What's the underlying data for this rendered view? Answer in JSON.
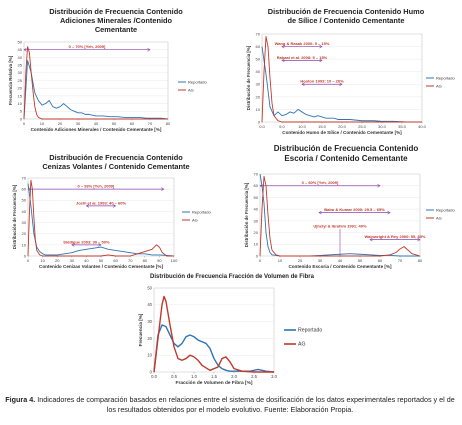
{
  "chart_data": [
    {
      "type": "line",
      "title_lines": [
        "Distribución de Frecuencia Contenido",
        "Adiciones Minerales /Contenido",
        "Cementante"
      ],
      "xlabel": "Contenido Adiciones Minerales / Contenido Cementante [%]",
      "ylabel": "Frecuencia Relativa [%]",
      "xlim": [
        0,
        80
      ],
      "ylim": [
        0,
        50
      ],
      "x_ticks": [
        "0",
        "10",
        "20",
        "30",
        "40",
        "50",
        "60",
        "70",
        "80"
      ],
      "y_ticks": [
        "0",
        "5",
        "10",
        "15",
        "20",
        "25",
        "30",
        "35",
        "40",
        "45",
        "50"
      ],
      "legend_position": "right",
      "series": [
        {
          "name": "Reportado",
          "color": "#2e75b6",
          "x": [
            0,
            2,
            4,
            6,
            8,
            10,
            12,
            14,
            16,
            18,
            20,
            22,
            24,
            26,
            28,
            30,
            32,
            34,
            36,
            38,
            40,
            44,
            48,
            52,
            56,
            60,
            64,
            68,
            72,
            76,
            80
          ],
          "y": [
            0,
            38,
            30,
            17,
            12,
            9,
            10,
            12,
            8,
            7,
            8,
            10,
            8,
            6,
            5,
            4,
            4,
            3,
            3,
            2.5,
            2,
            2,
            1.5,
            1.5,
            1,
            1,
            1,
            0.5,
            0.5,
            0.5,
            0
          ]
        },
        {
          "name": "AG",
          "color": "#c0392b",
          "x": [
            0,
            1,
            2,
            3,
            4,
            5,
            6,
            7,
            8,
            10,
            12,
            14,
            16,
            20,
            30,
            40,
            50,
            60,
            70,
            80
          ],
          "y": [
            0,
            30,
            47,
            43,
            30,
            18,
            8,
            3,
            1,
            0,
            0,
            0,
            0,
            0,
            0,
            0,
            0,
            0,
            0,
            0
          ]
        }
      ],
      "annotations": [
        {
          "text": "0 – 70% [Yeh, 2009]",
          "x0": 0,
          "x1": 70,
          "y": 45
        }
      ]
    },
    {
      "type": "line",
      "title_lines": [
        "Distribución de Frecuencia Contenido Humo",
        "de Sílice / Contenido Cementante"
      ],
      "xlabel": "Contenido Humo de Sílice / Contenido Cementante [%]",
      "ylabel": "Distribución de Frecuencia [%]",
      "xlim": [
        0,
        40
      ],
      "ylim": [
        0,
        70
      ],
      "x_ticks": [
        "0.0",
        "5.0",
        "10.0",
        "15.0",
        "20.0",
        "25.0",
        "30.0",
        "35.0",
        "40.0"
      ],
      "y_ticks": [
        "0",
        "10",
        "20",
        "30",
        "40",
        "50",
        "60",
        "70"
      ],
      "legend_position": "right",
      "series": [
        {
          "name": "Reportado",
          "color": "#2e75b6",
          "x": [
            0,
            1,
            2,
            3,
            4,
            5,
            6,
            7,
            8,
            9,
            10,
            11,
            12,
            13,
            14,
            15,
            16,
            17,
            18,
            19,
            20,
            22,
            25,
            28,
            30,
            33,
            36,
            40
          ],
          "y": [
            60,
            38,
            12,
            5,
            8,
            5,
            6,
            8,
            7,
            10,
            8,
            6,
            5,
            4,
            5,
            4,
            3,
            3,
            3,
            2,
            2,
            2,
            1,
            1,
            0.5,
            0.5,
            0,
            0
          ]
        },
        {
          "name": "AG",
          "color": "#c0392b",
          "x": [
            0,
            0.5,
            1,
            1.5,
            2,
            2.5,
            3,
            4,
            5,
            10,
            15,
            20,
            25,
            30,
            35,
            40
          ],
          "y": [
            0,
            40,
            68,
            60,
            35,
            15,
            5,
            1,
            0,
            0,
            0,
            0,
            0,
            0,
            0,
            0
          ]
        }
      ],
      "annotations": [
        {
          "text": "Wang & Rasak 2000: 5 – 15%",
          "x0": 5,
          "x1": 15,
          "y": 60
        },
        {
          "text": "Rahaal et al. 2008: 5 – 15%",
          "x0": 5,
          "x1": 15,
          "y": 49
        },
        {
          "text": "Hooton 1993: 10 – 20%",
          "x0": 10,
          "x1": 20,
          "y": 30
        }
      ]
    },
    {
      "type": "line",
      "title_lines": [
        "Distribución de Frecuencia Contenido",
        "Cenizas Volantes / Contenido Cementante"
      ],
      "xlabel": "Contenido Cenizas Volantes / Contenido Cementante [%]",
      "ylabel": "Distribución de Frecuencia [%]",
      "xlim": [
        0,
        100
      ],
      "ylim": [
        0,
        70
      ],
      "x_ticks": [
        "0",
        "10",
        "20",
        "30",
        "40",
        "50",
        "60",
        "70",
        "80",
        "90",
        "100"
      ],
      "y_ticks": [
        "0",
        "10",
        "20",
        "30",
        "40",
        "50",
        "60",
        "70"
      ],
      "legend_position": "right",
      "series": [
        {
          "name": "Reportado",
          "color": "#2e75b6",
          "x": [
            0,
            2,
            4,
            6,
            8,
            10,
            12,
            15,
            20,
            25,
            30,
            35,
            40,
            45,
            50,
            55,
            60,
            65,
            70,
            75,
            80,
            85,
            90,
            95,
            100
          ],
          "y": [
            65,
            45,
            20,
            8,
            4,
            2,
            1,
            1,
            1,
            2,
            3,
            5,
            6,
            7,
            8,
            6,
            5,
            4,
            3,
            2,
            2,
            1,
            1,
            0.5,
            0
          ]
        },
        {
          "name": "AG",
          "color": "#c0392b",
          "x": [
            0,
            1,
            2,
            3,
            4,
            5,
            6,
            8,
            10,
            15,
            20,
            30,
            40,
            50,
            55,
            60,
            70,
            75,
            80,
            85,
            88,
            90,
            92,
            95,
            100
          ],
          "y": [
            0,
            40,
            68,
            60,
            35,
            15,
            5,
            1,
            0,
            0,
            0,
            0,
            0,
            0,
            1,
            0,
            0,
            2,
            4,
            6,
            10,
            8,
            3,
            0,
            0
          ]
        }
      ],
      "annotations": [
        {
          "text": "0 – 93% [Yeh, 2009]",
          "x0": 0,
          "x1": 93,
          "y": 60
        },
        {
          "text": "Joshi et al. 1993: 40 – 60%",
          "x0": 40,
          "x1": 60,
          "y": 45
        },
        {
          "text": "Siddique 2003: 30 – 50%",
          "x0": 30,
          "x1": 50,
          "y": 10
        }
      ]
    },
    {
      "type": "line",
      "title_lines": [
        "Distribución de Frecuencia Contenido",
        "Escoria / Contenido Cementante"
      ],
      "xlabel": "Contenido Escoria / Contenido Cementante [%]",
      "ylabel": "Distribución de Frecuencia [%]",
      "xlim": [
        0,
        80
      ],
      "ylim": [
        0,
        70
      ],
      "x_ticks": [
        "0",
        "10",
        "20",
        "30",
        "40",
        "50",
        "60",
        "70",
        "80"
      ],
      "y_ticks": [
        "0",
        "10",
        "20",
        "30",
        "40",
        "50",
        "60",
        "70"
      ],
      "legend_position": "right",
      "series": [
        {
          "name": "Reportado",
          "color": "#2e75b6",
          "x": [
            0,
            1,
            2,
            3,
            4,
            5,
            6,
            8,
            10,
            15,
            20,
            25,
            30,
            35,
            40,
            45,
            50,
            55,
            60,
            65,
            70,
            75,
            80
          ],
          "y": [
            70,
            60,
            45,
            20,
            8,
            3,
            1,
            0.5,
            0,
            0,
            0,
            0,
            0.5,
            1,
            1.5,
            2,
            1.5,
            1,
            0.5,
            0.5,
            0,
            0,
            0
          ]
        },
        {
          "name": "AG",
          "color": "#c0392b",
          "x": [
            0,
            1,
            2,
            3,
            4,
            5,
            6,
            8,
            10,
            20,
            30,
            40,
            50,
            60,
            65,
            68,
            70,
            72,
            74,
            76,
            80
          ],
          "y": [
            0,
            40,
            68,
            60,
            35,
            15,
            5,
            1,
            0,
            0,
            0,
            0,
            0,
            0,
            1,
            3,
            6,
            8,
            5,
            2,
            0
          ]
        }
      ],
      "annotations": [
        {
          "text": "0 – 60% [Yeh, 2009]",
          "x0": 0,
          "x1": 60,
          "y": 60
        },
        {
          "text": "Babu & Kumar 2000: 29.5 – 65%",
          "x0": 29.5,
          "x1": 65,
          "y": 37
        },
        {
          "text": "Ujhelyi & Ibrahim 1991: 40%",
          "x0": 40,
          "x1": 40,
          "y": 23
        },
        {
          "text": "Wainwright & Rey 2000: 55, 85%",
          "x0": 55,
          "x1": 80,
          "y": 14
        }
      ]
    },
    {
      "type": "line",
      "title_lines": [
        "Distribución de Frecuencia Fracción de Volumen de Fibra"
      ],
      "xlabel": "Fracción de Volumen de Fibra [%]",
      "ylabel": "Frecuencia [%]",
      "xlim": [
        0,
        3
      ],
      "ylim": [
        0,
        50
      ],
      "x_ticks": [
        "0.0",
        "0.5",
        "1.0",
        "1.5",
        "2.0",
        "2.5",
        "3.0"
      ],
      "y_ticks": [
        "0",
        "10",
        "20",
        "30",
        "40",
        "50"
      ],
      "legend_position": "right",
      "series": [
        {
          "name": "Reportado",
          "color": "#2e75b6",
          "x": [
            0,
            0.1,
            0.2,
            0.3,
            0.4,
            0.5,
            0.6,
            0.7,
            0.8,
            0.9,
            1.0,
            1.1,
            1.2,
            1.3,
            1.4,
            1.5,
            1.6,
            1.7,
            1.8,
            1.9,
            2.0,
            2.2,
            2.4,
            2.6,
            2.8,
            3.0
          ],
          "y": [
            0,
            22,
            28,
            27,
            22,
            17,
            15,
            17,
            21,
            22,
            21,
            19,
            18,
            17,
            14,
            8,
            4,
            2,
            1,
            0.5,
            0.5,
            0.5,
            0.5,
            1.5,
            0.5,
            0
          ]
        },
        {
          "name": "AG",
          "color": "#c0392b",
          "x": [
            0,
            0.1,
            0.2,
            0.25,
            0.3,
            0.4,
            0.5,
            0.6,
            0.7,
            0.8,
            0.9,
            1.0,
            1.1,
            1.2,
            1.4,
            1.6,
            1.7,
            1.8,
            1.9,
            2.0,
            2.2,
            2.5,
            3.0
          ],
          "y": [
            0,
            20,
            40,
            45,
            42,
            28,
            15,
            8,
            7,
            8,
            10,
            9,
            7,
            4,
            1,
            3,
            8,
            9,
            6,
            2,
            0.5,
            0,
            0
          ]
        }
      ],
      "annotations": []
    }
  ],
  "caption": {
    "label": "Figura 4.",
    "text": "Indicadores de comparación basados en relaciones entre el sistema de dosificación de los datos experimentales reportados y el de los resultados obtenidos por el modelo evolutivo. Fuente: Elaboración Propia."
  }
}
